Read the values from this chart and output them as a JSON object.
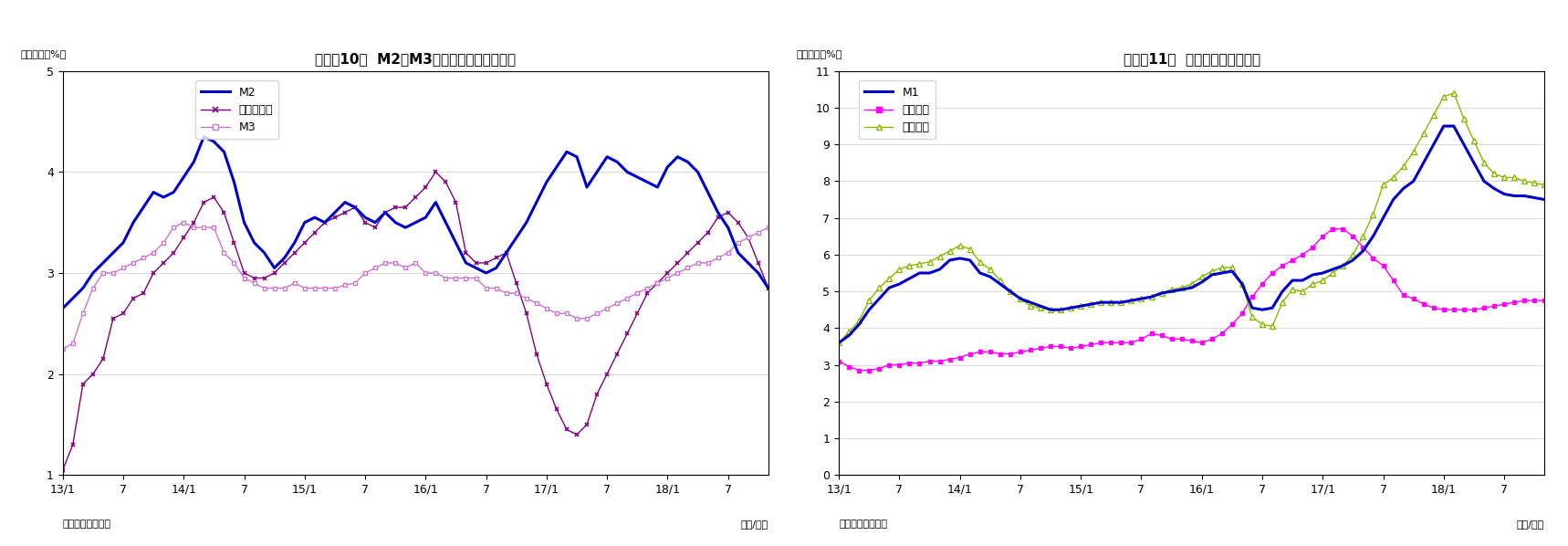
{
  "chart1": {
    "title": "（図表10）  M2、M3、広義流動性の伸び率",
    "ylabel": "（前年比、%）",
    "xlabel": "（年/月）",
    "source": "（資料）日本銀行",
    "ylim": [
      1,
      5
    ],
    "yticks": [
      1,
      2,
      3,
      4,
      5
    ],
    "xtick_positions": [
      0,
      6,
      12,
      18,
      24,
      30,
      36,
      42,
      48,
      54,
      60,
      66
    ],
    "xtick_labels": [
      "13/1",
      "7",
      "14/1",
      "7",
      "15/1",
      "7",
      "16/1",
      "7",
      "17/1",
      "7",
      "18/1",
      "7"
    ],
    "m2": [
      2.65,
      2.75,
      2.85,
      3.0,
      3.1,
      3.2,
      3.3,
      3.5,
      3.65,
      3.8,
      3.75,
      3.8,
      3.95,
      4.1,
      4.35,
      4.3,
      4.2,
      3.9,
      3.5,
      3.3,
      3.2,
      3.05,
      3.15,
      3.3,
      3.5,
      3.55,
      3.5,
      3.6,
      3.7,
      3.65,
      3.55,
      3.5,
      3.6,
      3.5,
      3.45,
      3.5,
      3.55,
      3.7,
      3.5,
      3.3,
      3.1,
      3.05,
      3.0,
      3.05,
      3.2,
      3.35,
      3.5,
      3.7,
      3.9,
      4.05,
      4.2,
      4.15,
      3.85,
      4.0,
      4.15,
      4.1,
      4.0,
      3.95,
      3.9,
      3.85,
      4.05,
      4.15,
      4.1,
      4.0,
      3.8,
      3.6,
      3.45,
      3.2,
      3.1,
      3.0,
      2.85
    ],
    "kogi": [
      1.05,
      1.3,
      1.9,
      2.0,
      2.15,
      2.55,
      2.6,
      2.75,
      2.8,
      3.0,
      3.1,
      3.2,
      3.35,
      3.5,
      3.7,
      3.75,
      3.6,
      3.3,
      3.0,
      2.95,
      2.95,
      3.0,
      3.1,
      3.2,
      3.3,
      3.4,
      3.5,
      3.55,
      3.6,
      3.65,
      3.5,
      3.45,
      3.6,
      3.65,
      3.65,
      3.75,
      3.85,
      4.0,
      3.9,
      3.7,
      3.2,
      3.1,
      3.1,
      3.15,
      3.2,
      2.9,
      2.6,
      2.2,
      1.9,
      1.65,
      1.45,
      1.4,
      1.5,
      1.8,
      2.0,
      2.2,
      2.4,
      2.6,
      2.8,
      2.9,
      3.0,
      3.1,
      3.2,
      3.3,
      3.4,
      3.55,
      3.6,
      3.5,
      3.35,
      3.1,
      2.85
    ],
    "m3": [
      2.25,
      2.3,
      2.6,
      2.85,
      3.0,
      3.0,
      3.05,
      3.1,
      3.15,
      3.2,
      3.3,
      3.45,
      3.5,
      3.45,
      3.45,
      3.45,
      3.2,
      3.1,
      2.95,
      2.9,
      2.85,
      2.85,
      2.85,
      2.9,
      2.85,
      2.85,
      2.85,
      2.85,
      2.88,
      2.9,
      3.0,
      3.05,
      3.1,
      3.1,
      3.05,
      3.1,
      3.0,
      3.0,
      2.95,
      2.95,
      2.95,
      2.95,
      2.85,
      2.85,
      2.8,
      2.8,
      2.75,
      2.7,
      2.65,
      2.6,
      2.6,
      2.55,
      2.55,
      2.6,
      2.65,
      2.7,
      2.75,
      2.8,
      2.85,
      2.9,
      2.95,
      3.0,
      3.05,
      3.1,
      3.1,
      3.15,
      3.2,
      3.3,
      3.35,
      3.4,
      3.45
    ],
    "m2_color": "#0000cd",
    "kogi_color": "#800080",
    "m3_color": "#cc77cc",
    "legend": [
      "M2",
      "広義流動性",
      "M3"
    ]
  },
  "chart2": {
    "title": "（図表11）  現金・預金の伸び率",
    "ylabel": "（前年比、%）",
    "xlabel": "（年/月）",
    "source": "（資料）日本銀行",
    "ylim": [
      0,
      11
    ],
    "yticks": [
      0,
      1,
      2,
      3,
      4,
      5,
      6,
      7,
      8,
      9,
      10,
      11
    ],
    "xtick_positions": [
      0,
      6,
      12,
      18,
      24,
      30,
      36,
      42,
      48,
      54,
      60,
      66
    ],
    "xtick_labels": [
      "13/1",
      "7",
      "14/1",
      "7",
      "15/1",
      "7",
      "16/1",
      "7",
      "17/1",
      "7",
      "18/1",
      "7"
    ],
    "m1": [
      3.6,
      3.8,
      4.1,
      4.5,
      4.8,
      5.1,
      5.2,
      5.35,
      5.5,
      5.5,
      5.6,
      5.85,
      5.9,
      5.85,
      5.5,
      5.4,
      5.2,
      5.0,
      4.8,
      4.7,
      4.6,
      4.5,
      4.5,
      4.55,
      4.6,
      4.65,
      4.7,
      4.7,
      4.7,
      4.75,
      4.8,
      4.85,
      4.95,
      5.0,
      5.05,
      5.1,
      5.25,
      5.45,
      5.5,
      5.55,
      5.2,
      4.55,
      4.5,
      4.55,
      5.0,
      5.3,
      5.3,
      5.45,
      5.5,
      5.6,
      5.7,
      5.85,
      6.1,
      6.5,
      7.0,
      7.5,
      7.8,
      8.0,
      8.5,
      9.0,
      9.5,
      9.5,
      9.0,
      8.5,
      8.0,
      7.8,
      7.65,
      7.6,
      7.6,
      7.55,
      7.5
    ],
    "genkin": [
      3.1,
      2.95,
      2.85,
      2.85,
      2.9,
      3.0,
      3.0,
      3.05,
      3.05,
      3.1,
      3.1,
      3.15,
      3.2,
      3.3,
      3.35,
      3.35,
      3.3,
      3.3,
      3.35,
      3.4,
      3.45,
      3.5,
      3.5,
      3.45,
      3.5,
      3.55,
      3.6,
      3.6,
      3.6,
      3.6,
      3.7,
      3.85,
      3.8,
      3.7,
      3.7,
      3.65,
      3.6,
      3.7,
      3.85,
      4.1,
      4.4,
      4.85,
      5.2,
      5.5,
      5.7,
      5.85,
      6.0,
      6.2,
      6.5,
      6.7,
      6.7,
      6.5,
      6.2,
      5.9,
      5.7,
      5.3,
      4.9,
      4.8,
      4.65,
      4.55,
      4.5,
      4.5,
      4.5,
      4.5,
      4.55,
      4.6,
      4.65,
      4.7,
      4.75,
      4.75,
      4.75
    ],
    "yokin": [
      3.6,
      3.9,
      4.2,
      4.75,
      5.1,
      5.35,
      5.6,
      5.7,
      5.75,
      5.8,
      5.95,
      6.1,
      6.25,
      6.15,
      5.8,
      5.6,
      5.3,
      5.0,
      4.8,
      4.6,
      4.55,
      4.5,
      4.5,
      4.55,
      4.6,
      4.65,
      4.7,
      4.7,
      4.7,
      4.75,
      4.8,
      4.85,
      4.95,
      5.05,
      5.1,
      5.2,
      5.4,
      5.55,
      5.65,
      5.65,
      5.2,
      4.3,
      4.1,
      4.05,
      4.7,
      5.05,
      5.0,
      5.2,
      5.3,
      5.5,
      5.7,
      6.0,
      6.5,
      7.1,
      7.9,
      8.1,
      8.4,
      8.8,
      9.3,
      9.8,
      10.3,
      10.4,
      9.7,
      9.1,
      8.5,
      8.2,
      8.1,
      8.1,
      8.0,
      7.95,
      7.9
    ],
    "m1_color": "#0000cd",
    "genkin_color": "#ff00ff",
    "yokin_color": "#88bb00",
    "legend": [
      "M1",
      "現金通貨",
      "預金通貨"
    ]
  }
}
